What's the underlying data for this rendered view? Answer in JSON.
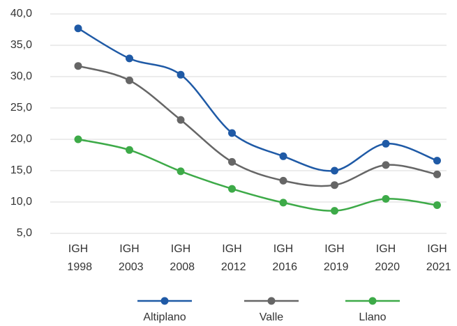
{
  "chart_data": {
    "type": "line",
    "categories": [
      "IGH 1998",
      "IGH 2003",
      "IGH 2008",
      "IGH 2012",
      "IGH 2016",
      "IGH 2019",
      "IGH 2020",
      "IGH 2021"
    ],
    "series": [
      {
        "name": "Altiplano",
        "color": "#1f5aa6",
        "values": [
          37.7,
          32.9,
          30.3,
          21.0,
          17.3,
          15.0,
          19.3,
          16.6
        ]
      },
      {
        "name": "Valle",
        "color": "#666666",
        "values": [
          31.7,
          29.4,
          23.1,
          16.4,
          13.4,
          12.7,
          15.9,
          14.4
        ]
      },
      {
        "name": "Llano",
        "color": "#3daa48",
        "values": [
          20.0,
          18.3,
          14.9,
          12.1,
          9.9,
          8.6,
          10.5,
          9.5
        ]
      }
    ],
    "ylim": [
      5,
      40
    ],
    "yticks": [
      {
        "value": 5,
        "label": "5,0"
      },
      {
        "value": 10,
        "label": "10,0"
      },
      {
        "value": 15,
        "label": "15,0"
      },
      {
        "value": 20,
        "label": "20,0"
      },
      {
        "value": 25,
        "label": "25,0"
      },
      {
        "value": 30,
        "label": "30,0"
      },
      {
        "value": 35,
        "label": "35,0"
      },
      {
        "value": 40,
        "label": "40,0"
      }
    ],
    "grid": true,
    "smooth": true,
    "legend": "bottom"
  }
}
